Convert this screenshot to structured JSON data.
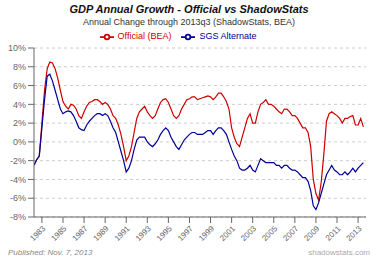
{
  "chart_data": {
    "type": "line",
    "title": "GDP Annual Growth - Official vs ShadowStats",
    "subtitle": "Annual Change through 2013q3  (ShadowStats, BEA)",
    "annotations": [
      "Published: Nov. 7, 2013",
      "shadowstats.com"
    ],
    "x": [
      1982.25,
      1982.5,
      1982.75,
      1983.0,
      1983.25,
      1983.5,
      1983.75,
      1984.0,
      1984.25,
      1984.5,
      1984.75,
      1985.0,
      1985.25,
      1985.5,
      1985.75,
      1986.0,
      1986.25,
      1986.5,
      1986.75,
      1987.0,
      1987.25,
      1987.5,
      1987.75,
      1988.0,
      1988.25,
      1988.5,
      1988.75,
      1989.0,
      1989.25,
      1989.5,
      1989.75,
      1990.0,
      1990.25,
      1990.5,
      1990.75,
      1991.0,
      1991.25,
      1991.5,
      1991.75,
      1992.0,
      1992.25,
      1992.5,
      1992.75,
      1993.0,
      1993.25,
      1993.5,
      1993.75,
      1994.0,
      1994.25,
      1994.5,
      1994.75,
      1995.0,
      1995.25,
      1995.5,
      1995.75,
      1996.0,
      1996.25,
      1996.5,
      1996.75,
      1997.0,
      1997.25,
      1997.5,
      1997.75,
      1998.0,
      1998.25,
      1998.5,
      1998.75,
      1999.0,
      1999.25,
      1999.5,
      1999.75,
      2000.0,
      2000.25,
      2000.5,
      2000.75,
      2001.0,
      2001.25,
      2001.5,
      2001.75,
      2002.0,
      2002.25,
      2002.5,
      2002.75,
      2003.0,
      2003.25,
      2003.5,
      2003.75,
      2004.0,
      2004.25,
      2004.5,
      2004.75,
      2005.0,
      2005.25,
      2005.5,
      2005.75,
      2006.0,
      2006.25,
      2006.5,
      2006.75,
      2007.0,
      2007.25,
      2007.5,
      2007.75,
      2008.0,
      2008.25,
      2008.5,
      2008.75,
      2009.0,
      2009.25,
      2009.5,
      2009.75,
      2010.0,
      2010.25,
      2010.5,
      2010.75,
      2011.0,
      2011.25,
      2011.5,
      2011.75,
      2012.0,
      2012.25,
      2012.5,
      2012.75,
      2013.0,
      2013.25,
      2013.5
    ],
    "series": [
      {
        "name": "Official (BEA)",
        "color": "#cc0000",
        "values": [
          -2.5,
          -1.9,
          -1.5,
          2.0,
          5.5,
          7.8,
          8.5,
          8.4,
          7.8,
          6.8,
          5.5,
          4.3,
          3.8,
          3.5,
          4.0,
          3.9,
          3.5,
          2.8,
          2.5,
          3.2,
          3.8,
          4.2,
          4.3,
          4.5,
          4.5,
          4.3,
          4.0,
          4.2,
          4.0,
          3.5,
          2.8,
          2.5,
          1.8,
          0.8,
          -0.5,
          -2.0,
          -1.5,
          -0.5,
          1.0,
          2.5,
          3.2,
          3.5,
          3.8,
          3.2,
          2.8,
          2.5,
          2.8,
          3.5,
          4.2,
          4.5,
          4.6,
          4.2,
          3.5,
          2.8,
          2.5,
          2.8,
          3.5,
          4.0,
          4.5,
          4.6,
          4.8,
          4.8,
          4.5,
          4.6,
          4.7,
          4.8,
          4.9,
          4.8,
          4.5,
          4.8,
          5.2,
          5.2,
          4.8,
          4.3,
          3.5,
          1.5,
          0.5,
          -0.2,
          -0.5,
          0.5,
          1.5,
          2.5,
          3.0,
          2.0,
          2.0,
          3.2,
          4.0,
          4.2,
          4.5,
          4.0,
          4.0,
          3.8,
          3.5,
          3.2,
          3.0,
          3.5,
          3.5,
          3.2,
          2.8,
          2.8,
          2.5,
          2.0,
          1.5,
          1.5,
          1.0,
          -0.5,
          -4.0,
          -5.5,
          -6.2,
          -4.3,
          -1.3,
          2.2,
          3.0,
          3.2,
          3.0,
          2.8,
          2.5,
          2.0,
          2.5,
          2.5,
          2.7,
          2.8,
          1.8,
          1.8,
          2.5,
          1.6
        ]
      },
      {
        "name": "SGS Alternate",
        "color": "#000099",
        "values": [
          -2.5,
          -1.9,
          -1.5,
          1.5,
          4.5,
          7.0,
          7.2,
          6.5,
          5.5,
          4.5,
          3.5,
          3.0,
          3.2,
          3.3,
          3.2,
          2.8,
          2.2,
          1.5,
          1.3,
          1.2,
          1.8,
          2.2,
          2.5,
          2.8,
          3.0,
          3.0,
          2.8,
          3.0,
          2.8,
          2.2,
          1.5,
          1.0,
          0.0,
          -1.0,
          -2.0,
          -3.2,
          -2.8,
          -2.0,
          -0.8,
          0.2,
          0.5,
          0.5,
          0.5,
          0.0,
          -0.3,
          -0.5,
          -0.2,
          0.2,
          0.8,
          1.2,
          1.5,
          1.2,
          0.5,
          0.0,
          -0.5,
          -0.8,
          -0.3,
          0.2,
          0.5,
          0.8,
          1.0,
          1.0,
          0.8,
          0.8,
          0.8,
          1.0,
          1.2,
          1.2,
          0.8,
          1.2,
          1.5,
          1.5,
          1.2,
          0.8,
          0.0,
          -0.8,
          -1.5,
          -2.0,
          -2.8,
          -3.0,
          -3.0,
          -2.8,
          -2.5,
          -3.0,
          -3.2,
          -2.5,
          -1.8,
          -2.0,
          -2.2,
          -2.2,
          -2.2,
          -2.2,
          -2.5,
          -2.5,
          -2.8,
          -2.5,
          -2.5,
          -2.8,
          -3.0,
          -3.0,
          -3.2,
          -3.5,
          -3.8,
          -3.8,
          -4.2,
          -5.2,
          -6.8,
          -7.2,
          -6.5,
          -5.5,
          -4.5,
          -3.5,
          -3.0,
          -2.5,
          -3.0,
          -3.2,
          -3.5,
          -3.5,
          -3.2,
          -3.5,
          -3.2,
          -2.8,
          -3.2,
          -2.8,
          -2.5,
          -2.2
        ]
      }
    ],
    "xlim": [
      1982.25,
      2013.75
    ],
    "xticks": [
      1983,
      1985,
      1987,
      1989,
      1991,
      1993,
      1995,
      1997,
      1999,
      2001,
      2003,
      2005,
      2007,
      2009,
      2011,
      2013
    ],
    "ylim": [
      -8,
      10
    ],
    "yticks": [
      {
        "value": -8,
        "label": "-8%"
      },
      {
        "value": -6,
        "label": "-6%"
      },
      {
        "value": -4,
        "label": "-4%"
      },
      {
        "value": -2,
        "label": "-2%"
      },
      {
        "value": 0,
        "label": "0%"
      },
      {
        "value": 2,
        "label": "2%"
      },
      {
        "value": 4,
        "label": "4%"
      },
      {
        "value": 6,
        "label": "6%"
      },
      {
        "value": 8,
        "label": "8%"
      },
      {
        "value": 10,
        "label": "10%"
      }
    ],
    "grid": true,
    "legend": "top"
  }
}
